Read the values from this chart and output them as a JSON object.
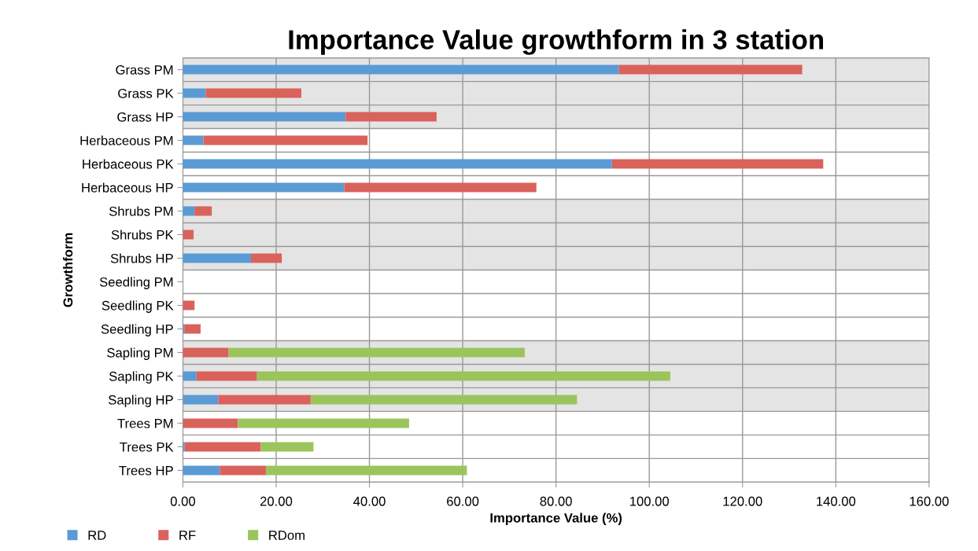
{
  "chart_data": {
    "type": "bar",
    "orientation": "horizontal",
    "stacked": true,
    "title": "Importance Value growthform in 3 station",
    "xlabel": "Importance Value (%)",
    "ylabel": "Growthform",
    "categories": [
      "Grass PM",
      "Grass PK",
      "Grass HP",
      "Herbaceous PM",
      "Herbaceous PK",
      "Herbaceous HP",
      "Shrubs PM",
      "Shrubs PK",
      "Shrubs HP",
      "Seedling PM",
      "Seedling PK",
      "Seedling HP",
      "Sapling PM",
      "Sapling PK",
      "Sapling HP",
      "Trees PM",
      "Trees PK",
      "Trees HP"
    ],
    "series": [
      {
        "name": "RD",
        "color": "#5b9bd5",
        "values": [
          93.5,
          4.9,
          34.9,
          4.4,
          92.0,
          34.6,
          2.5,
          0,
          14.6,
          0,
          0,
          0.3,
          0,
          2.9,
          7.6,
          0,
          0.4,
          7.9
        ]
      },
      {
        "name": "RF",
        "color": "#d9625b",
        "values": [
          39.3,
          20.5,
          19.5,
          35.2,
          45.3,
          41.2,
          3.7,
          2.3,
          6.6,
          0,
          2.5,
          3.5,
          9.8,
          13.0,
          19.8,
          11.8,
          16.3,
          9.9
        ]
      },
      {
        "name": "RDom",
        "color": "#9bc55c",
        "values": [
          0,
          0,
          0,
          0,
          0,
          0,
          0,
          0,
          0,
          0,
          0,
          0,
          63.5,
          88.6,
          57.1,
          36.7,
          11.3,
          43.1
        ]
      }
    ],
    "xlim": [
      0,
      160
    ],
    "xticks": [
      {
        "value": 0,
        "label": "0.00"
      },
      {
        "value": 20,
        "label": "20.00"
      },
      {
        "value": 40,
        "label": "40.00"
      },
      {
        "value": 60,
        "label": "60.00"
      },
      {
        "value": 80,
        "label": "80.00"
      },
      {
        "value": 100,
        "label": "100.00"
      },
      {
        "value": 120,
        "label": "120.00"
      },
      {
        "value": 140,
        "label": "140.00"
      },
      {
        "value": 160,
        "label": "160.00"
      }
    ],
    "bands": [
      {
        "axis": "y",
        "from": "Grass PM",
        "to": "Grass HP",
        "color": "#e4e4e4"
      },
      {
        "axis": "y",
        "from": "Shrubs PM",
        "to": "Shrubs HP",
        "color": "#e4e4e4"
      },
      {
        "axis": "y",
        "from": "Sapling PM",
        "to": "Sapling HP",
        "color": "#e4e4e4"
      }
    ],
    "grid": true,
    "legend": "bottom left"
  }
}
